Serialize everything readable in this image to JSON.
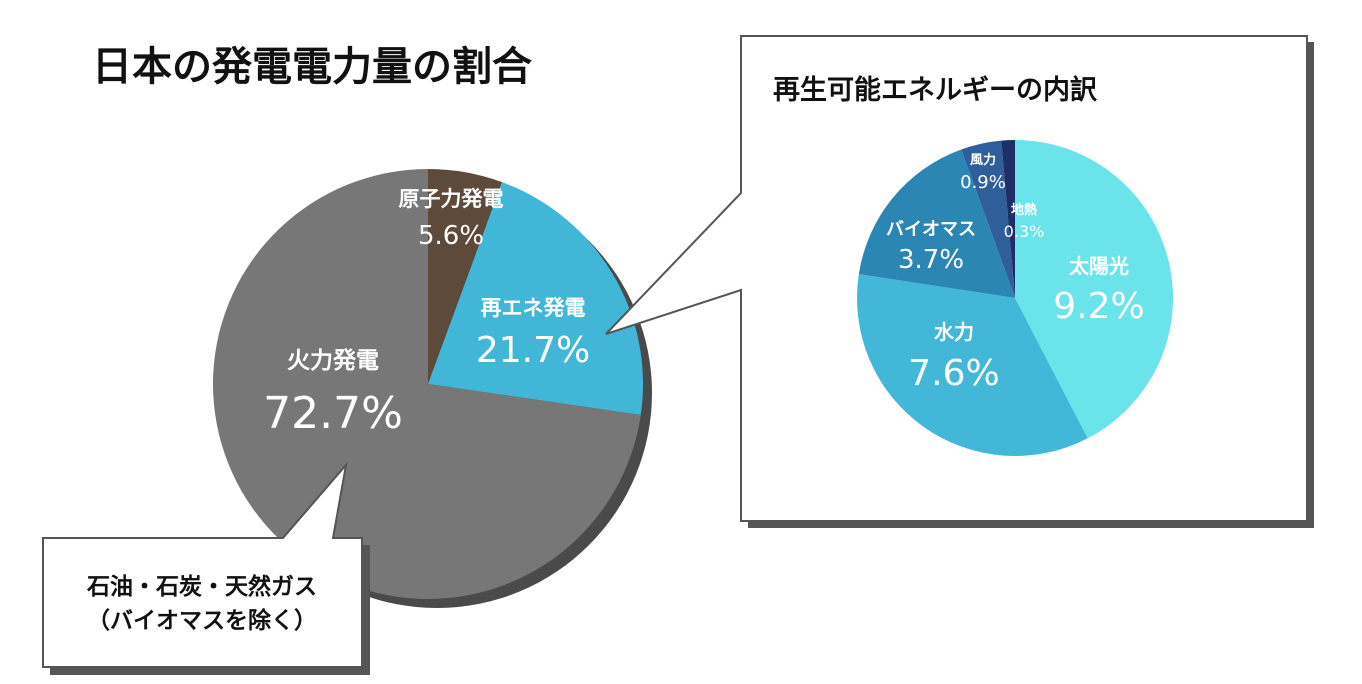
{
  "main": {
    "title": "日本の発電電力量の割合",
    "callout": {
      "line1": "石油・石炭・天然ガス",
      "line2": "（バイオマスを除く）"
    }
  },
  "breakdown": {
    "title": "再生可能エネルギーの内訳"
  },
  "chart_data": [
    {
      "type": "pie",
      "title": "日本の発電電力量の割合",
      "unit": "%",
      "slices": [
        {
          "label": "原子力発電",
          "value": 5.6,
          "display": "5.6%",
          "color": "#5e4a3b"
        },
        {
          "label": "再エネ発電",
          "value": 21.7,
          "display": "21.7%",
          "color": "#41b6d6"
        },
        {
          "label": "火力発電",
          "value": 72.7,
          "display": "72.7%",
          "color": "#777777"
        }
      ]
    },
    {
      "type": "pie",
      "title": "再生可能エネルギーの内訳",
      "unit": "%",
      "slices": [
        {
          "label": "太陽光",
          "value": 9.2,
          "display": "9.2%",
          "color": "#6be3ea"
        },
        {
          "label": "水力",
          "value": 7.6,
          "display": "7.6%",
          "color": "#42b7d7"
        },
        {
          "label": "バイオマス",
          "value": 3.7,
          "display": "3.7%",
          "color": "#2c86b3"
        },
        {
          "label": "風力",
          "value": 0.9,
          "display": "0.9%",
          "color": "#2f5e9a"
        },
        {
          "label": "地熱",
          "value": 0.3,
          "display": "0.3%",
          "color": "#1d2f66"
        }
      ]
    }
  ]
}
